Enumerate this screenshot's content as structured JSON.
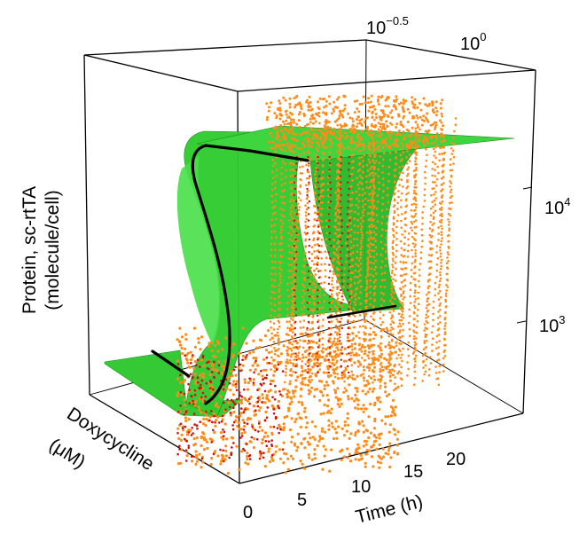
{
  "chart_data": {
    "type": "surface-3d",
    "xlabel": "Time (h)",
    "ylabel": "Doxycycline (μM)",
    "ylabel_lines": [
      "Doxycycline",
      "(μM)"
    ],
    "zlabel": "Protein, sc-rtTA (molecule/cell)",
    "zlabel_lines": [
      "Protein, sc-rtTA",
      "(molecule/cell)"
    ],
    "x_ticks": [
      {
        "value": 0,
        "label": "0"
      },
      {
        "value": 5,
        "label": "5"
      },
      {
        "value": 10,
        "label": "10"
      },
      {
        "value": 15,
        "label": "15"
      },
      {
        "value": 20,
        "label": "20"
      }
    ],
    "y_ticks": [
      {
        "value": 0.3162,
        "base": "10",
        "exp": "−0.5"
      },
      {
        "value": 1,
        "base": "10",
        "exp": "0"
      }
    ],
    "z_ticks": [
      {
        "value": 1000,
        "base": "10",
        "exp": "3"
      },
      {
        "value": 10000,
        "base": "10",
        "exp": "4"
      }
    ],
    "zscale": "log",
    "yscale": "log",
    "grid": false,
    "legend": "none",
    "series": [
      {
        "kind": "model-surface",
        "values_description_only": "",
        "color": "#2fce2f"
      },
      {
        "kind": "single-cell-trajectories-high",
        "color": "#ff8c1a"
      },
      {
        "kind": "single-cell-trajectories-low",
        "color": "#d01010"
      },
      {
        "kind": "model-contour",
        "color": "#000000"
      }
    ],
    "contour_low_plateau_z": 500,
    "contour_high_plateau_z": 20000,
    "colors": {
      "surface": "#2fce2f",
      "surface_dark": "#1f9e1f",
      "trajectories": "#ff8c1a",
      "trajectories_accent": "#d01010",
      "contour": "#000000",
      "box": "#000000"
    }
  }
}
